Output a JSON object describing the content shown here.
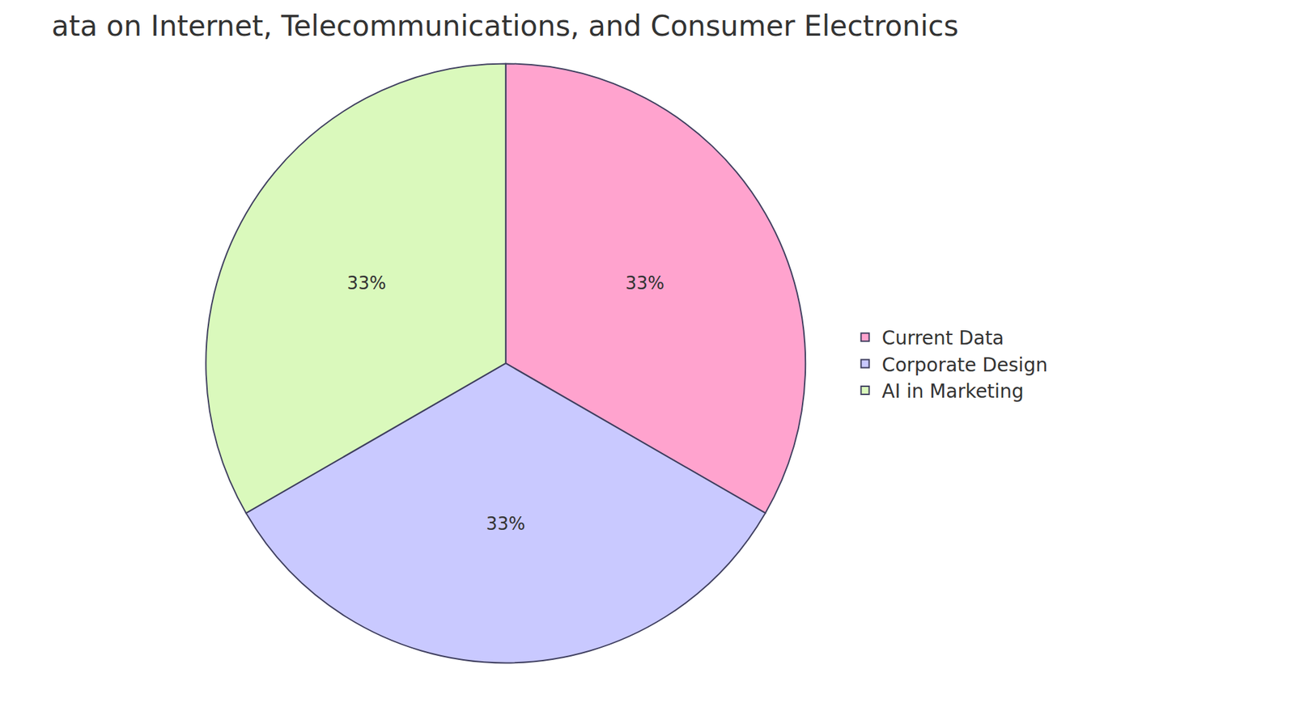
{
  "chart_data": {
    "type": "pie",
    "title": "ata on Internet, Telecommunications, and Consumer Electronics",
    "categories": [
      "Current Data",
      "Corporate Design",
      "AI in Marketing"
    ],
    "values": [
      33,
      33,
      33
    ],
    "value_labels": [
      "33%",
      "33%",
      "33%"
    ],
    "colors": [
      "#ffa3ce",
      "#c9c9ff",
      "#daf9bc"
    ],
    "data_labels": true,
    "legend": "right"
  }
}
